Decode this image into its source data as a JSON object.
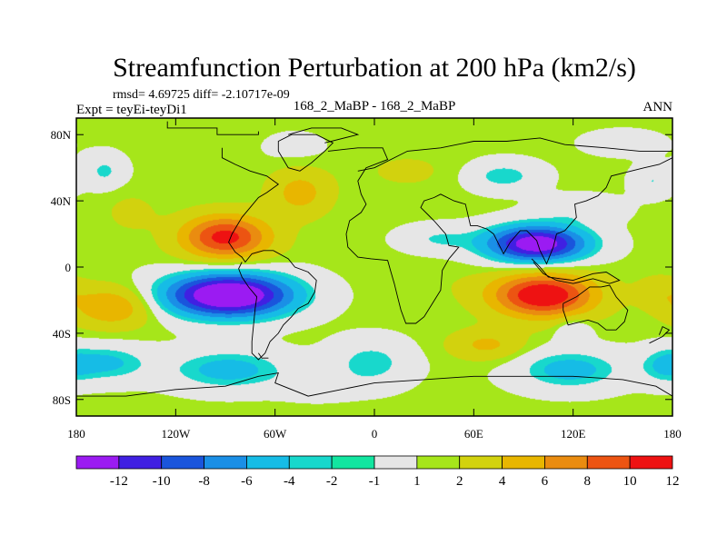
{
  "chart_data": {
    "type": "heatmap",
    "title": "Streamfunction Perturbation at 200 hPa (km2/s)",
    "stats_text": "rmsd= 4.69725 diff= -2.10717e-09",
    "left_label": "Expt = teyEi-teyDi1",
    "center_label": "168_2_MaBP - 168_2_MaBP",
    "right_label": "ANN",
    "xlim": [
      -180,
      180
    ],
    "ylim": [
      -90,
      90
    ],
    "x_ticks": [
      {
        "value": -180,
        "label": "180"
      },
      {
        "value": -120,
        "label": "120W"
      },
      {
        "value": -60,
        "label": "60W"
      },
      {
        "value": 0,
        "label": "0"
      },
      {
        "value": 60,
        "label": "60E"
      },
      {
        "value": 120,
        "label": "120E"
      },
      {
        "value": 180,
        "label": "180"
      }
    ],
    "y_ticks": [
      {
        "value": 80,
        "label": "80N"
      },
      {
        "value": 40,
        "label": "40N"
      },
      {
        "value": 0,
        "label": "0"
      },
      {
        "value": -40,
        "label": "40S"
      },
      {
        "value": -80,
        "label": "80S"
      }
    ],
    "contour_levels": [
      -12,
      -10,
      -8,
      -6,
      -4,
      -2,
      -1,
      1,
      2,
      4,
      6,
      8,
      10,
      12
    ],
    "colorbar_labels": [
      "-12",
      "-10",
      "-8",
      "-6",
      "-4",
      "-2",
      "-1",
      "1",
      "2",
      "4",
      "6",
      "8",
      "10",
      "12"
    ],
    "colors": [
      "#9b1bf2",
      "#4020e2",
      "#1a55dc",
      "#1a8fe6",
      "#16bce6",
      "#18d8cc",
      "#12e6a0",
      "#e6e6e6",
      "#a6e61a",
      "#d2d20e",
      "#e8b600",
      "#ea8c10",
      "#ec5412",
      "#ee1212"
    ],
    "background_value": 1.3,
    "features": [
      {
        "lon": -90,
        "lat": 18,
        "wlon": 26,
        "wlat": 13,
        "amp": 9.6
      },
      {
        "lon": -45,
        "lat": 45,
        "wlon": 18,
        "wlat": 14,
        "amp": 3.6
      },
      {
        "lon": -163,
        "lat": 58,
        "wlon": 12,
        "wlat": 10,
        "amp": -2.6
      },
      {
        "lon": -147,
        "lat": 33,
        "wlon": 16,
        "wlat": 12,
        "amp": 1.2
      },
      {
        "lon": -48,
        "lat": 72,
        "wlon": 20,
        "wlat": 10,
        "amp": -0.9
      },
      {
        "lon": -88,
        "lat": -17,
        "wlon": 38,
        "wlat": 13,
        "amp": -15.5
      },
      {
        "lon": -158,
        "lat": -24,
        "wlon": 24,
        "wlat": 12,
        "amp": 4.8
      },
      {
        "lon": -163,
        "lat": -58,
        "wlon": 26,
        "wlat": 11,
        "amp": -3.8
      },
      {
        "lon": -88,
        "lat": -62,
        "wlon": 36,
        "wlat": 12,
        "amp": -4.2
      },
      {
        "lon": -35,
        "lat": -72,
        "wlon": 22,
        "wlat": 8,
        "amp": -1.5
      },
      {
        "lon": -2,
        "lat": -58,
        "wlon": 24,
        "wlat": 14,
        "amp": -3.0
      },
      {
        "lon": 98,
        "lat": 14,
        "wlon": 30,
        "wlat": 11,
        "amp": -13.5
      },
      {
        "lon": 38,
        "lat": 17,
        "wlon": 22,
        "wlat": 8,
        "amp": -2.3
      },
      {
        "lon": 125,
        "lat": 35,
        "wlon": 24,
        "wlat": 8,
        "amp": -2.0
      },
      {
        "lon": 78,
        "lat": 55,
        "wlon": 22,
        "wlat": 9,
        "amp": -3.0
      },
      {
        "lon": 168,
        "lat": 52,
        "wlon": 12,
        "wlat": 9,
        "amp": -2.3
      },
      {
        "lon": 102,
        "lat": -17,
        "wlon": 30,
        "wlat": 13,
        "amp": 11.2
      },
      {
        "lon": 172,
        "lat": -15,
        "wlon": 14,
        "wlat": 10,
        "amp": 1.8
      },
      {
        "lon": 68,
        "lat": -47,
        "wlon": 22,
        "wlat": 9,
        "amp": 3.2
      },
      {
        "lon": 118,
        "lat": -62,
        "wlon": 32,
        "wlat": 12,
        "amp": -4.2
      },
      {
        "lon": 175,
        "lat": -60,
        "wlon": 14,
        "wlat": 11,
        "amp": -2.4
      },
      {
        "lon": 120,
        "lat": -38,
        "wlon": 10,
        "wlat": 7,
        "amp": -2.6
      },
      {
        "lon": 20,
        "lat": 58,
        "wlon": 30,
        "wlat": 12,
        "amp": 1.0
      },
      {
        "lon": 150,
        "lat": 75,
        "wlon": 25,
        "wlat": 8,
        "amp": -1.2
      },
      {
        "lon": 45,
        "lat": -10,
        "wlon": 30,
        "wlat": 12,
        "amp": 0.4
      }
    ],
    "coastlines": [
      [
        [
          -125,
          88
        ],
        [
          -125,
          84
        ],
        [
          -95,
          84
        ],
        [
          -95,
          80
        ],
        [
          -70,
          80
        ],
        [
          -70,
          82
        ]
      ],
      [
        [
          -58,
          70
        ],
        [
          -55,
          65
        ],
        [
          -52,
          60
        ],
        [
          -45,
          58
        ],
        [
          -38,
          63
        ],
        [
          -30,
          70
        ],
        [
          -25,
          75
        ],
        [
          -35,
          80
        ],
        [
          -50,
          80
        ],
        [
          -58,
          76
        ],
        [
          -58,
          70
        ]
      ],
      [
        [
          -92,
          72
        ],
        [
          -92,
          66
        ],
        [
          -84,
          62
        ],
        [
          -75,
          58
        ],
        [
          -65,
          55
        ],
        [
          -58,
          50
        ],
        [
          -65,
          45
        ],
        [
          -70,
          42
        ],
        [
          -75,
          36
        ],
        [
          -80,
          30
        ],
        [
          -83,
          25
        ],
        [
          -86,
          20
        ],
        [
          -88,
          15
        ],
        [
          -84,
          9
        ],
        [
          -80,
          6
        ],
        [
          -78,
          3
        ],
        [
          -74,
          8
        ],
        [
          -67,
          10
        ],
        [
          -61,
          10
        ],
        [
          -52,
          5
        ],
        [
          -48,
          0
        ],
        [
          -40,
          -3
        ],
        [
          -35,
          -8
        ],
        [
          -36,
          -15
        ],
        [
          -40,
          -22
        ],
        [
          -46,
          -25
        ],
        [
          -50,
          -30
        ],
        [
          -55,
          -35
        ],
        [
          -58,
          -40
        ],
        [
          -63,
          -45
        ],
        [
          -66,
          -52
        ],
        [
          -70,
          -56
        ],
        [
          -74,
          -52
        ],
        [
          -74,
          -45
        ],
        [
          -73,
          -35
        ],
        [
          -72,
          -25
        ],
        [
          -71,
          -18
        ],
        [
          -76,
          -12
        ],
        [
          -80,
          -6
        ],
        [
          -82,
          -1
        ],
        [
          -80,
          3
        ]
      ],
      [
        [
          -28,
          70
        ],
        [
          -10,
          72
        ],
        [
          5,
          72
        ],
        [
          8,
          65
        ],
        [
          -5,
          60
        ],
        [
          -10,
          52
        ],
        [
          -8,
          44
        ],
        [
          -5,
          38
        ],
        [
          -8,
          33
        ],
        [
          -15,
          28
        ],
        [
          -17,
          20
        ],
        [
          -16,
          12
        ],
        [
          -10,
          6
        ],
        [
          -2,
          5
        ],
        [
          8,
          4
        ],
        [
          10,
          -3
        ],
        [
          12,
          -10
        ],
        [
          14,
          -18
        ],
        [
          16,
          -26
        ],
        [
          19,
          -34
        ],
        [
          25,
          -34
        ],
        [
          30,
          -30
        ],
        [
          35,
          -22
        ],
        [
          40,
          -14
        ],
        [
          41,
          -2
        ],
        [
          45,
          5
        ],
        [
          51,
          12
        ],
        [
          45,
          13
        ],
        [
          43,
          20
        ],
        [
          36,
          28
        ],
        [
          33,
          31
        ],
        [
          28,
          36
        ],
        [
          30,
          40
        ],
        [
          36,
          42
        ],
        [
          40,
          44
        ],
        [
          48,
          40
        ],
        [
          55,
          38
        ],
        [
          58,
          25
        ],
        [
          62,
          25
        ],
        [
          68,
          23
        ],
        [
          72,
          20
        ],
        [
          78,
          8
        ],
        [
          82,
          15
        ],
        [
          88,
          22
        ],
        [
          92,
          22
        ],
        [
          98,
          16
        ],
        [
          100,
          10
        ],
        [
          104,
          2
        ],
        [
          108,
          12
        ],
        [
          110,
          20
        ],
        [
          115,
          22
        ],
        [
          122,
          30
        ],
        [
          121,
          38
        ],
        [
          128,
          40
        ],
        [
          135,
          43
        ],
        [
          140,
          48
        ],
        [
          143,
          55
        ],
        [
          155,
          58
        ],
        [
          163,
          60
        ],
        [
          172,
          62
        ],
        [
          180,
          66
        ]
      ],
      [
        [
          -10,
          58
        ],
        [
          0,
          60
        ],
        [
          20,
          70
        ],
        [
          40,
          72
        ],
        [
          60,
          76
        ],
        [
          80,
          76
        ],
        [
          100,
          78
        ],
        [
          115,
          74
        ],
        [
          140,
          72
        ],
        [
          160,
          70
        ],
        [
          180,
          70
        ]
      ],
      [
        [
          -52,
          80
        ],
        [
          -38,
          84
        ],
        [
          -20,
          84
        ],
        [
          -10,
          80
        ],
        [
          -30,
          75
        ]
      ],
      [
        [
          114,
          -22
        ],
        [
          122,
          -18
        ],
        [
          130,
          -12
        ],
        [
          137,
          -12
        ],
        [
          142,
          -11
        ],
        [
          146,
          -18
        ],
        [
          153,
          -26
        ],
        [
          151,
          -33
        ],
        [
          146,
          -38
        ],
        [
          140,
          -38
        ],
        [
          135,
          -34
        ],
        [
          129,
          -32
        ],
        [
          117,
          -35
        ],
        [
          114,
          -26
        ],
        [
          114,
          -22
        ]
      ],
      [
        [
          95,
          5
        ],
        [
          100,
          0
        ],
        [
          105,
          -6
        ],
        [
          112,
          -7
        ],
        [
          120,
          -8
        ],
        [
          132,
          -4
        ],
        [
          140,
          -3
        ],
        [
          148,
          -8
        ],
        [
          142,
          -10
        ],
        [
          132,
          -7
        ],
        [
          120,
          -10
        ],
        [
          110,
          -8
        ],
        [
          102,
          -4
        ],
        [
          96,
          3
        ]
      ],
      [
        [
          -180,
          -78
        ],
        [
          -150,
          -78
        ],
        [
          -120,
          -74
        ],
        [
          -90,
          -72
        ],
        [
          -70,
          -66
        ],
        [
          -58,
          -64
        ],
        [
          -60,
          -70
        ],
        [
          -40,
          -78
        ],
        [
          -20,
          -74
        ],
        [
          0,
          -70
        ],
        [
          30,
          -68
        ],
        [
          60,
          -66
        ],
        [
          90,
          -66
        ],
        [
          120,
          -66
        ],
        [
          150,
          -68
        ],
        [
          170,
          -72
        ],
        [
          180,
          -78
        ]
      ],
      [
        [
          -70,
          -52
        ],
        [
          -68,
          -55
        ],
        [
          -64,
          -55
        ]
      ],
      [
        [
          166,
          -46
        ],
        [
          174,
          -42
        ],
        [
          178,
          -38
        ],
        [
          174,
          -36
        ],
        [
          172,
          -41
        ]
      ]
    ]
  }
}
